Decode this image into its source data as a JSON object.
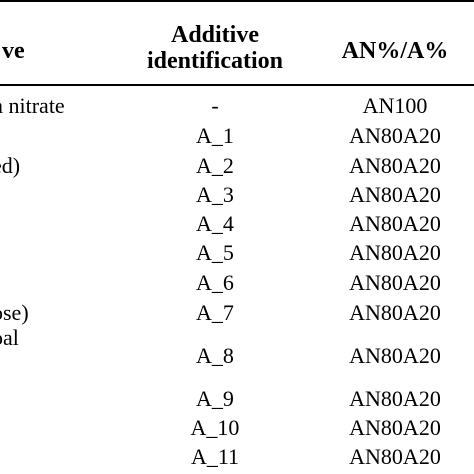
{
  "table": {
    "headers": {
      "col1": "ve",
      "col2_line1": "Additive",
      "col2_line2": "identification",
      "col3": "AN%/A%"
    },
    "rows": [
      {
        "name": "n nitrate",
        "id": "-",
        "ratio": "AN100"
      },
      {
        "name": "",
        "id": "A_1",
        "ratio": "AN80A20"
      },
      {
        "name": "ed)",
        "id": "A_2",
        "ratio": "AN80A20"
      },
      {
        "name": "",
        "id": "A_3",
        "ratio": "AN80A20"
      },
      {
        "name": "",
        "id": "A_4",
        "ratio": "AN80A20"
      },
      {
        "name": "",
        "id": "A_5",
        "ratio": "AN80A20"
      },
      {
        "name": "",
        "id": "A_6",
        "ratio": "AN80A20"
      },
      {
        "name": "ose)",
        "id": "A_7",
        "ratio": "AN80A20"
      },
      {
        "name": "oal",
        "id": "",
        "ratio": ""
      },
      {
        "name": "",
        "id": "A_8",
        "ratio": "AN80A20"
      },
      {
        "name": "",
        "id": "A_9",
        "ratio": "AN80A20"
      },
      {
        "name": "",
        "id": "A_10",
        "ratio": "AN80A20"
      },
      {
        "name": "",
        "id": "A_11",
        "ratio": "AN80A20"
      }
    ]
  }
}
